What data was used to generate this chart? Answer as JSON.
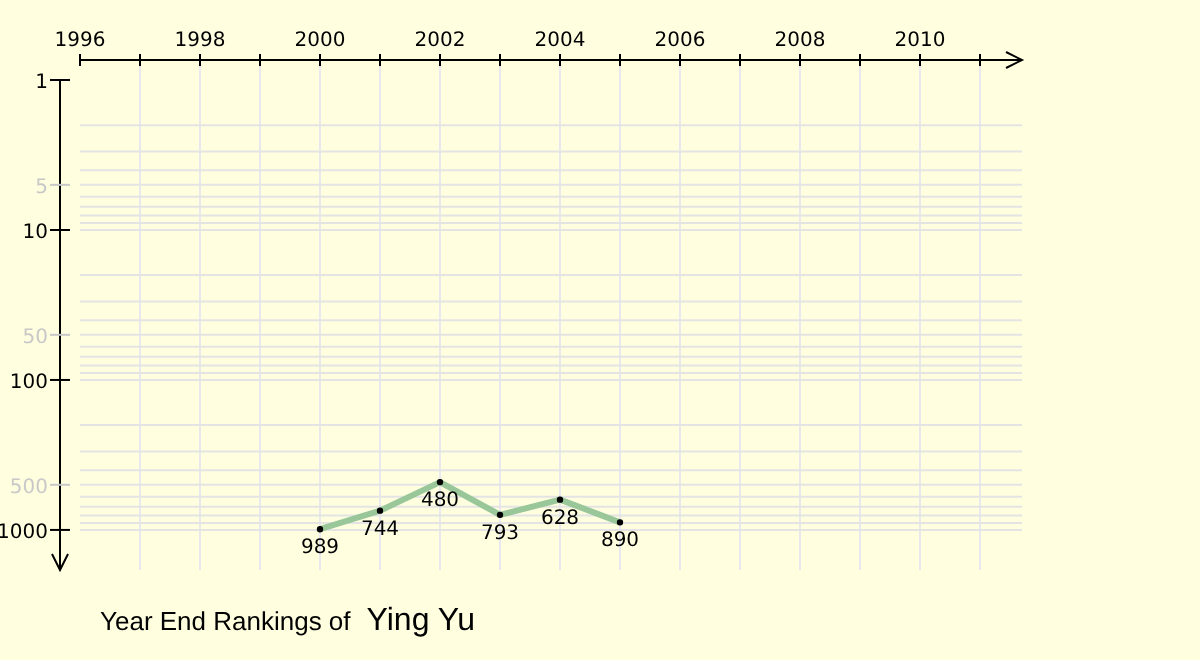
{
  "chart_data": {
    "type": "line",
    "title": "Year End Rankings of",
    "subtitle": "Ying Yu",
    "x": [
      2000,
      2001,
      2002,
      2003,
      2004,
      2005
    ],
    "series": [
      {
        "color": "#99c799",
        "values": [
          989,
          744,
          480,
          793,
          628,
          890
        ]
      }
    ],
    "xlim": [
      1996,
      2011.7
    ],
    "xticks": [
      1996,
      {
        "value": 1997,
        "label": null
      },
      1998,
      {
        "value": 1999,
        "label": null
      },
      2000,
      {
        "value": 2001,
        "label": null
      },
      2002,
      {
        "value": 2003,
        "label": null
      },
      2004,
      {
        "value": 2005,
        "label": null
      },
      2006,
      {
        "value": 2007,
        "label": null
      },
      2008,
      {
        "value": 2009,
        "label": null
      },
      2010,
      {
        "value": 2011,
        "label": null
      }
    ],
    "ylim": [
      1850,
      1
    ],
    "yticks": [
      1,
      5,
      10,
      50,
      100,
      500,
      1000
    ],
    "log": "y",
    "grid": true,
    "data_labels": true,
    "marker": "circle",
    "line_style": "solid"
  }
}
